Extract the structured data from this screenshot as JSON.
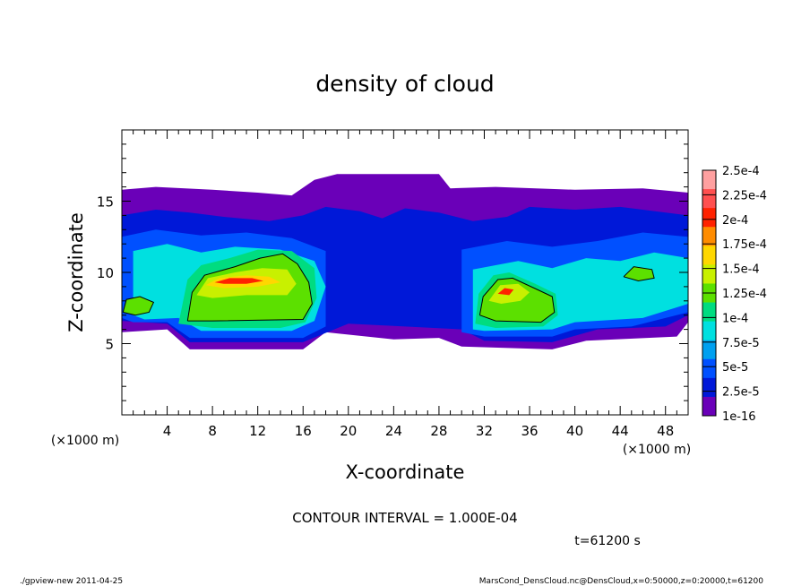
{
  "chart_data": {
    "type": "heatmap",
    "title": "density of cloud",
    "xlabel": "X-coordinate",
    "ylabel": "Z-coordinate",
    "x_unit": "(×1000 m)",
    "y_unit": "(×1000 m)",
    "xlim": [
      0,
      50
    ],
    "ylim": [
      0,
      20
    ],
    "x_ticks": [
      4,
      8,
      12,
      16,
      20,
      24,
      28,
      32,
      36,
      40,
      44,
      48
    ],
    "y_ticks": [
      5,
      10,
      15
    ],
    "colorbar_labels": [
      "2.5e-4",
      "2.25e-4",
      "2e-4",
      "1.75e-4",
      "1.5e-4",
      "1.25e-4",
      "1e-4",
      "7.5e-5",
      "5e-5",
      "2.5e-5",
      "1e-16"
    ],
    "colorbar_colors": [
      "#ffa0a0",
      "#ff5050",
      "#ff2200",
      "#ff8c00",
      "#ffd700",
      "#c8f000",
      "#5ce000",
      "#00dc80",
      "#00e0e0",
      "#00a0f0",
      "#0050ff",
      "#0018d8",
      "#6a00b8"
    ],
    "contour_interval": "CONTOUR INTERVAL = 1.000E-04",
    "time_label": "t=61200 s",
    "footer_left": "./gpview-new   2011-04-25",
    "footer_right": "MarsCond_DensCloud.nc@DensCloud,x=0:50000,z=0:20000,t=61200",
    "regions": [
      {
        "name": "upper-envelope",
        "level": 0,
        "points": [
          [
            0,
            8
          ],
          [
            0,
            15.8
          ],
          [
            3,
            16
          ],
          [
            8,
            15.8
          ],
          [
            12,
            15.6
          ],
          [
            15,
            15.4
          ],
          [
            17,
            16.5
          ],
          [
            19,
            16.9
          ],
          [
            28,
            16.9
          ],
          [
            29,
            15.9
          ],
          [
            33,
            16
          ],
          [
            40,
            15.8
          ],
          [
            46,
            15.9
          ],
          [
            50,
            15.6
          ],
          [
            50,
            6.5
          ],
          [
            49,
            5.5
          ],
          [
            41,
            5.2
          ],
          [
            38,
            4.6
          ],
          [
            30,
            4.8
          ],
          [
            28,
            5.4
          ],
          [
            24,
            5.3
          ],
          [
            18,
            5.8
          ],
          [
            16,
            4.6
          ],
          [
            6,
            4.6
          ],
          [
            4,
            6
          ],
          [
            0,
            5.8
          ]
        ]
      },
      {
        "name": "mid-blue-layer",
        "level": 1,
        "points": [
          [
            0,
            7
          ],
          [
            0,
            14
          ],
          [
            3,
            14.4
          ],
          [
            6,
            14.2
          ],
          [
            9,
            13.9
          ],
          [
            13,
            13.6
          ],
          [
            16,
            14
          ],
          [
            18,
            14.6
          ],
          [
            21,
            14.3
          ],
          [
            23,
            13.8
          ],
          [
            25,
            14.5
          ],
          [
            28,
            14.2
          ],
          [
            31,
            13.6
          ],
          [
            34,
            13.9
          ],
          [
            36,
            14.6
          ],
          [
            40,
            14.4
          ],
          [
            44,
            14.6
          ],
          [
            47,
            14.3
          ],
          [
            50,
            14
          ],
          [
            50,
            7
          ],
          [
            48,
            6.2
          ],
          [
            42,
            6
          ],
          [
            38,
            5.1
          ],
          [
            32,
            5.2
          ],
          [
            30,
            6
          ],
          [
            25,
            6.2
          ],
          [
            20,
            6.4
          ],
          [
            16,
            5.1
          ],
          [
            6,
            5.1
          ],
          [
            4,
            6.4
          ],
          [
            0,
            6.6
          ]
        ]
      },
      {
        "name": "blue-left",
        "level": 2,
        "points": [
          [
            0,
            6.8
          ],
          [
            0,
            12.5
          ],
          [
            3,
            13
          ],
          [
            7,
            12.6
          ],
          [
            11,
            12.8
          ],
          [
            15,
            12.4
          ],
          [
            18,
            11.5
          ],
          [
            18,
            6.2
          ],
          [
            16,
            5.4
          ],
          [
            6,
            5.4
          ],
          [
            4,
            6.5
          ],
          [
            1,
            6.5
          ]
        ]
      },
      {
        "name": "blue-right",
        "level": 2,
        "points": [
          [
            30,
            5.8
          ],
          [
            30,
            11.6
          ],
          [
            34,
            12.2
          ],
          [
            38,
            11.8
          ],
          [
            42,
            12.2
          ],
          [
            46,
            12.8
          ],
          [
            50,
            12.5
          ],
          [
            50,
            7.2
          ],
          [
            45,
            6.2
          ],
          [
            40,
            6
          ],
          [
            38,
            5.5
          ],
          [
            32,
            5.5
          ]
        ]
      },
      {
        "name": "cyan-left",
        "level": 3,
        "points": [
          [
            1,
            7
          ],
          [
            1,
            11.5
          ],
          [
            4,
            12
          ],
          [
            7,
            11.4
          ],
          [
            10,
            11.8
          ],
          [
            14,
            11.6
          ],
          [
            17,
            10.8
          ],
          [
            18,
            9
          ],
          [
            17,
            6.6
          ],
          [
            15,
            5.9
          ],
          [
            7,
            5.9
          ],
          [
            5,
            6.8
          ],
          [
            2,
            6.7
          ]
        ]
      },
      {
        "name": "cyan-right",
        "level": 3,
        "points": [
          [
            31,
            6
          ],
          [
            31,
            10.2
          ],
          [
            35,
            10.8
          ],
          [
            38,
            10.3
          ],
          [
            41,
            11
          ],
          [
            44,
            10.8
          ],
          [
            47,
            11.4
          ],
          [
            50,
            11
          ],
          [
            50,
            7.8
          ],
          [
            46,
            6.8
          ],
          [
            40,
            6.5
          ],
          [
            38,
            6
          ],
          [
            32,
            5.9
          ]
        ]
      },
      {
        "name": "teal-left",
        "level": 4,
        "points": [
          [
            5,
            6.4
          ],
          [
            5.8,
            9.5
          ],
          [
            7,
            10.5
          ],
          [
            9.5,
            11
          ],
          [
            12,
            11.6
          ],
          [
            15,
            11.5
          ],
          [
            17,
            10.3
          ],
          [
            17.2,
            8.2
          ],
          [
            16.2,
            6.5
          ],
          [
            14,
            6.1
          ],
          [
            8,
            6.1
          ]
        ]
      },
      {
        "name": "teal-right",
        "level": 4,
        "points": [
          [
            31.2,
            6.4
          ],
          [
            31.5,
            8.5
          ],
          [
            32.8,
            9.8
          ],
          [
            34.2,
            10
          ],
          [
            36.5,
            9.2
          ],
          [
            38.3,
            8.5
          ],
          [
            38.5,
            7
          ],
          [
            37.2,
            6.2
          ],
          [
            33,
            6.1
          ]
        ]
      },
      {
        "name": "green-left",
        "level": 5,
        "points": [
          [
            5.8,
            6.6
          ],
          [
            6.2,
            8.6
          ],
          [
            7.3,
            9.8
          ],
          [
            10,
            10.4
          ],
          [
            12.2,
            11
          ],
          [
            14.2,
            11.3
          ],
          [
            15.5,
            10.6
          ],
          [
            16.5,
            9.3
          ],
          [
            16.8,
            7.8
          ],
          [
            16,
            6.7
          ],
          [
            8,
            6.6
          ]
        ]
      },
      {
        "name": "green-right",
        "level": 5,
        "points": [
          [
            31.6,
            7
          ],
          [
            31.9,
            8.3
          ],
          [
            33.2,
            9.5
          ],
          [
            34.5,
            9.6
          ],
          [
            36.4,
            8.9
          ],
          [
            38,
            8.3
          ],
          [
            38.2,
            7.2
          ],
          [
            37,
            6.5
          ],
          [
            33,
            6.6
          ]
        ]
      },
      {
        "name": "green-spot-left",
        "level": 5,
        "points": [
          [
            0.1,
            7.2
          ],
          [
            0.4,
            8.1
          ],
          [
            1.6,
            8.3
          ],
          [
            2.8,
            7.9
          ],
          [
            2.4,
            7.2
          ],
          [
            1.2,
            7.0
          ]
        ]
      },
      {
        "name": "green-spot-right",
        "level": 5,
        "points": [
          [
            44.3,
            9.7
          ],
          [
            45.2,
            10.4
          ],
          [
            46.8,
            10.2
          ],
          [
            47,
            9.6
          ],
          [
            45.6,
            9.4
          ]
        ]
      },
      {
        "name": "lime-left",
        "level": 6,
        "points": [
          [
            6.6,
            8.4
          ],
          [
            7.6,
            9.6
          ],
          [
            10,
            10
          ],
          [
            12.4,
            10.3
          ],
          [
            14.6,
            10.2
          ],
          [
            15.4,
            9.2
          ],
          [
            14.6,
            8.4
          ],
          [
            11,
            8.4
          ],
          [
            8,
            8.2
          ]
        ]
      },
      {
        "name": "lime-right",
        "level": 6,
        "points": [
          [
            32.4,
            8
          ],
          [
            33.4,
            9.1
          ],
          [
            35,
            9.2
          ],
          [
            36,
            8.6
          ],
          [
            35.2,
            8
          ],
          [
            33.5,
            7.8
          ]
        ]
      },
      {
        "name": "yellow-left",
        "level": 7,
        "points": [
          [
            7.4,
            9.1
          ],
          [
            8.6,
            9.6
          ],
          [
            11,
            9.8
          ],
          [
            13,
            9.7
          ],
          [
            14,
            9.3
          ],
          [
            12,
            9
          ],
          [
            9,
            8.9
          ]
        ]
      },
      {
        "name": "orange-left",
        "level": 8,
        "points": [
          [
            8.2,
            9.3
          ],
          [
            9.5,
            9.6
          ],
          [
            11.5,
            9.6
          ],
          [
            12.5,
            9.4
          ],
          [
            11,
            9.2
          ],
          [
            9,
            9.2
          ]
        ]
      },
      {
        "name": "orange-right",
        "level": 8,
        "points": [
          [
            33.2,
            8.5
          ],
          [
            33.8,
            8.9
          ],
          [
            34.6,
            8.8
          ],
          [
            34.2,
            8.4
          ]
        ]
      }
    ],
    "contours": [
      [
        [
          5.8,
          6.6
        ],
        [
          6.2,
          8.6
        ],
        [
          7.3,
          9.8
        ],
        [
          10,
          10.4
        ],
        [
          12.2,
          11
        ],
        [
          14.2,
          11.3
        ],
        [
          15.5,
          10.6
        ],
        [
          16.5,
          9.3
        ],
        [
          16.8,
          7.8
        ],
        [
          16,
          6.7
        ],
        [
          8,
          6.6
        ],
        [
          5.8,
          6.6
        ]
      ],
      [
        [
          31.6,
          7
        ],
        [
          31.9,
          8.3
        ],
        [
          33.2,
          9.5
        ],
        [
          34.5,
          9.6
        ],
        [
          36.4,
          8.9
        ],
        [
          38,
          8.3
        ],
        [
          38.2,
          7.2
        ],
        [
          37,
          6.5
        ],
        [
          33,
          6.6
        ],
        [
          31.6,
          7
        ]
      ],
      [
        [
          0.1,
          7.2
        ],
        [
          0.4,
          8.1
        ],
        [
          1.6,
          8.3
        ],
        [
          2.8,
          7.9
        ],
        [
          2.4,
          7.2
        ],
        [
          1.2,
          7.0
        ],
        [
          0.1,
          7.2
        ]
      ],
      [
        [
          44.3,
          9.7
        ],
        [
          45.2,
          10.4
        ],
        [
          46.8,
          10.2
        ],
        [
          47,
          9.6
        ],
        [
          45.6,
          9.4
        ],
        [
          44.3,
          9.7
        ]
      ]
    ]
  }
}
